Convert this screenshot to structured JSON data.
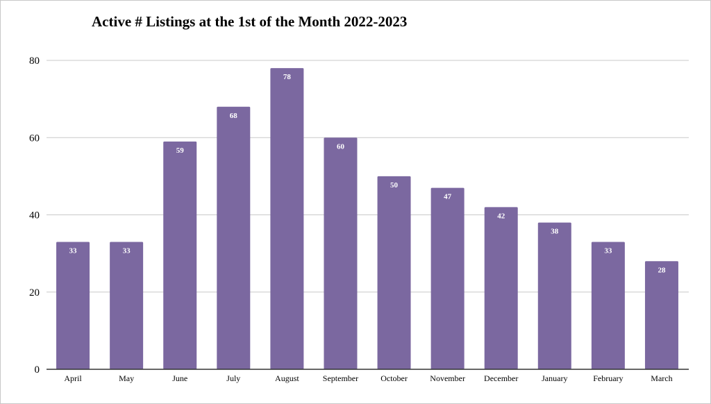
{
  "chart_data": {
    "type": "bar",
    "title": "Active # Listings at the 1st of the Month 2022-2023",
    "xlabel": "",
    "ylabel": "",
    "categories": [
      "April",
      "May",
      "June",
      "July",
      "August",
      "September",
      "October",
      "November",
      "December",
      "January",
      "February",
      "March"
    ],
    "values": [
      33,
      33,
      59,
      68,
      78,
      60,
      50,
      47,
      42,
      38,
      33,
      28
    ],
    "ylim": [
      0,
      80
    ],
    "yticks": [
      "0",
      "20",
      "40",
      "60",
      "80"
    ],
    "bar_color": "#7b68a0",
    "grid": true,
    "legend": "none"
  }
}
